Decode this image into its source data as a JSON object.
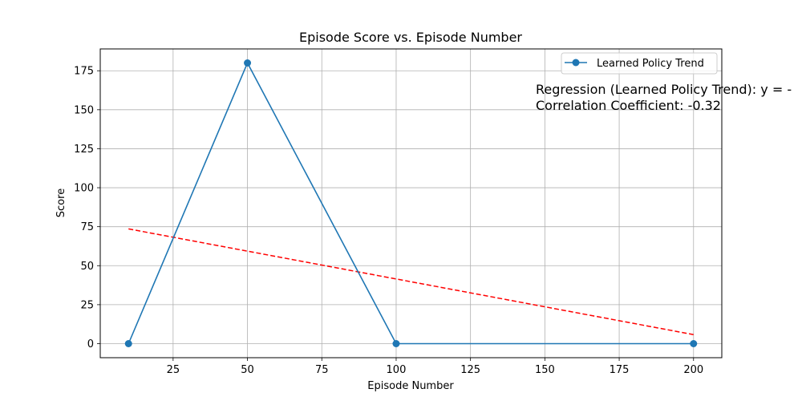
{
  "chart_data": {
    "type": "line",
    "title": "Episode Score vs. Episode Number",
    "xlabel": "Episode Number",
    "ylabel": "Score",
    "xlim": [
      0.5,
      209.5
    ],
    "ylim": [
      -9,
      189
    ],
    "xticks": [
      25,
      50,
      75,
      100,
      125,
      150,
      175,
      200
    ],
    "yticks": [
      0,
      25,
      50,
      75,
      100,
      125,
      150,
      175
    ],
    "grid": true,
    "legend_position": "top-right",
    "series": [
      {
        "name": "Learned Policy Trend",
        "color": "#1f77b4",
        "marker": "circle",
        "x": [
          10,
          50,
          100,
          200
        ],
        "y": [
          0,
          180,
          0,
          0
        ]
      }
    ],
    "regression": {
      "color": "#ff0000",
      "style": "dashed",
      "x": [
        10,
        200
      ],
      "y": [
        73.6,
        5.8
      ]
    },
    "annotations": [
      "Regression (Learned Policy Trend): y = -",
      "Correlation Coefficient: -0.32"
    ]
  }
}
